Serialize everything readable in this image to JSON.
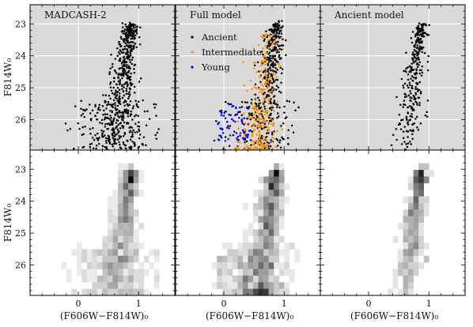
{
  "chart_data": {
    "type": "scatter",
    "layout": "2x3 grid of panels",
    "xlabel": "(F606W−F814W)₀",
    "ylabel": "F814W₀",
    "xlim": [
      -0.8,
      1.6
    ],
    "ylim": [
      26.95,
      22.4
    ],
    "x_ticks": [
      "0",
      "1"
    ],
    "y_ticks": [
      "23",
      "24",
      "25",
      "26"
    ],
    "top_row_style": "scatter points on grey background with white grid",
    "bottom_row_style": "greyscale 2D histogram (Hess diagram)",
    "panels": [
      {
        "title": "MADCASH-2",
        "row": "top",
        "col": 0
      },
      {
        "title": "Full model",
        "row": "top",
        "col": 1
      },
      {
        "title": "Ancient model",
        "row": "top",
        "col": 2
      },
      {
        "title": "",
        "row": "bottom",
        "col": 0
      },
      {
        "title": "",
        "row": "bottom",
        "col": 1
      },
      {
        "title": "",
        "row": "bottom",
        "col": 2
      }
    ],
    "legend": {
      "panel": "Full model",
      "placement": "upper-left",
      "entries": [
        {
          "label": "Ancient",
          "color": "#000000"
        },
        {
          "label": "Intermediate",
          "color": "#ff8c00"
        },
        {
          "label": "Young",
          "color": "#0000ee"
        }
      ]
    },
    "series_shapes": {
      "rgb_ridge": [
        [
          0.63,
          26.9
        ],
        [
          0.67,
          26.0
        ],
        [
          0.72,
          25.0
        ],
        [
          0.79,
          24.0
        ],
        [
          0.88,
          23.0
        ]
      ],
      "young_plume": [
        [
          0.0,
          25.7
        ],
        [
          0.15,
          26.3
        ]
      ]
    }
  }
}
